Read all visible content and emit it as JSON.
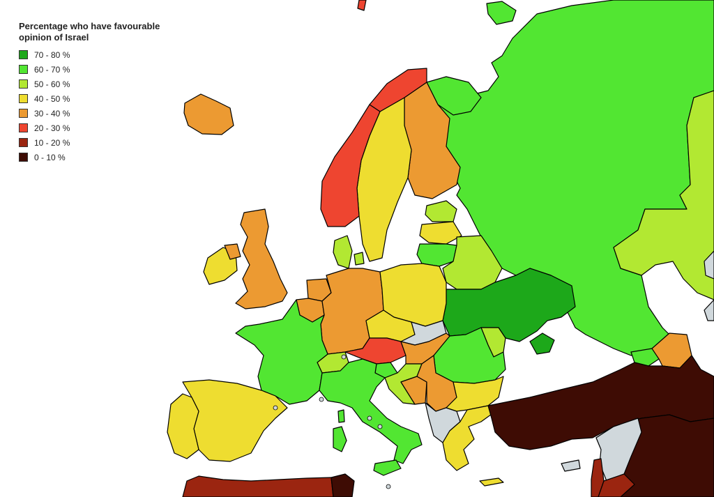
{
  "legend": {
    "title": "Percentage who have favourable\nopinion of Israel",
    "items": [
      {
        "label": "70 - 80 %",
        "color": "#1da81a"
      },
      {
        "label": "60 - 70 %",
        "color": "#52e632"
      },
      {
        "label": "50 - 60 %",
        "color": "#b2e832"
      },
      {
        "label": "40 - 50 %",
        "color": "#eedd30"
      },
      {
        "label": "30 - 40 %",
        "color": "#ec9a32"
      },
      {
        "label": "20 - 30 %",
        "color": "#ee4530"
      },
      {
        "label": "10 - 20 %",
        "color": "#9b2510"
      },
      {
        "label": "0 - 10 %",
        "color": "#3e0c04"
      }
    ]
  },
  "no_data_color": "#d0d8dc",
  "sea_color": "#ffffff",
  "regions": [
    {
      "name": "russia",
      "band": "60-70"
    },
    {
      "name": "kazakhstan",
      "band": "50-60"
    },
    {
      "name": "ukraine",
      "band": "70-80"
    },
    {
      "name": "crimea",
      "band": "70-80"
    },
    {
      "name": "belarus",
      "band": "50-60"
    },
    {
      "name": "estonia",
      "band": "50-60"
    },
    {
      "name": "latvia",
      "band": "40-50"
    },
    {
      "name": "lithuania",
      "band": "60-70"
    },
    {
      "name": "finland",
      "band": "30-40"
    },
    {
      "name": "sweden",
      "band": "40-50"
    },
    {
      "name": "norway",
      "band": "20-30"
    },
    {
      "name": "northern-scandinavia",
      "band": "20-30"
    },
    {
      "name": "denmark",
      "band": "50-60"
    },
    {
      "name": "iceland",
      "band": "30-40"
    },
    {
      "name": "ireland",
      "band": "40-50"
    },
    {
      "name": "united-kingdom",
      "band": "30-40"
    },
    {
      "name": "netherlands",
      "band": "30-40"
    },
    {
      "name": "belgium",
      "band": "30-40"
    },
    {
      "name": "germany",
      "band": "30-40"
    },
    {
      "name": "poland",
      "band": "40-50"
    },
    {
      "name": "czechia",
      "band": "40-50"
    },
    {
      "name": "slovakia",
      "band": "no-data"
    },
    {
      "name": "austria",
      "band": "20-30"
    },
    {
      "name": "switzerland",
      "band": "50-60"
    },
    {
      "name": "france",
      "band": "60-70"
    },
    {
      "name": "spain",
      "band": "40-50"
    },
    {
      "name": "portugal",
      "band": "40-50"
    },
    {
      "name": "italy",
      "band": "60-70"
    },
    {
      "name": "sardinia",
      "band": "60-70"
    },
    {
      "name": "sicily",
      "band": "60-70"
    },
    {
      "name": "hungary",
      "band": "30-40"
    },
    {
      "name": "slovenia",
      "band": "60-70"
    },
    {
      "name": "croatia",
      "band": "50-60"
    },
    {
      "name": "bosnia",
      "band": "30-40"
    },
    {
      "name": "serbia",
      "band": "30-40"
    },
    {
      "name": "romania",
      "band": "60-70"
    },
    {
      "name": "moldova",
      "band": "50-60"
    },
    {
      "name": "bulgaria",
      "band": "40-50"
    },
    {
      "name": "western-balkans",
      "band": "no-data"
    },
    {
      "name": "greece",
      "band": "40-50"
    },
    {
      "name": "crete",
      "band": "40-50"
    },
    {
      "name": "georgia",
      "band": "60-70"
    },
    {
      "name": "armenia",
      "band": "30-40"
    },
    {
      "name": "turkey",
      "band": "0-10"
    },
    {
      "name": "middle-east",
      "band": "0-10"
    },
    {
      "name": "syria-north",
      "band": "no-data"
    },
    {
      "name": "lebanon",
      "band": "10-20"
    },
    {
      "name": "cyprus",
      "band": "no-data"
    },
    {
      "name": "north-africa",
      "band": "10-20"
    },
    {
      "name": "tunisia",
      "band": "0-10"
    },
    {
      "name": "caucasus-no-data",
      "band": "no-data"
    }
  ]
}
